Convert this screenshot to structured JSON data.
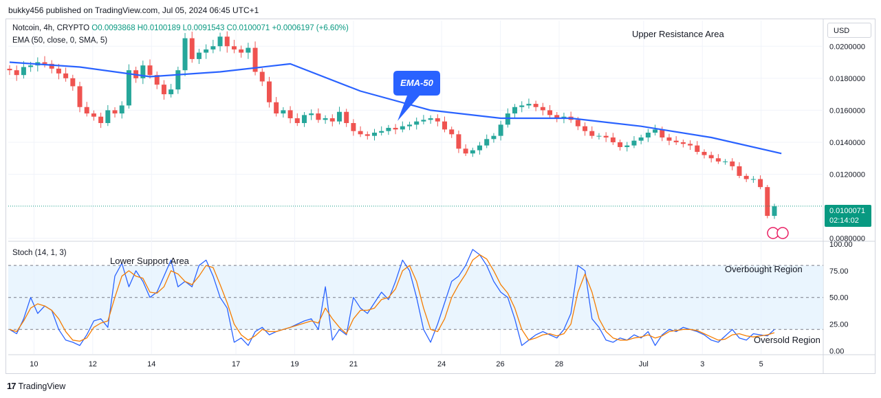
{
  "header": {
    "published": "bukky456 published on TradingView.com, Jul 05, 2024 06:45 UTC+1"
  },
  "legend": {
    "symbol": "Notcoin, 4h, CRYPTO",
    "open": "O0.0093868",
    "high": "H0.0100189",
    "low": "L0.0091543",
    "close": "C0.0100071",
    "change": "+0.0006197 (+6.60%)",
    "indicator": "EMA (50, close, 0, SMA, 5)"
  },
  "stoch_legend": "Stoch (14, 1, 3)",
  "currency_button": "USD",
  "current_price": {
    "value": "0.0100071",
    "countdown": "02:14:02"
  },
  "annotations": {
    "upper_resistance": "Upper Resistance Area",
    "lower_support": "Lower Support Area",
    "overbought": "Overbought Region",
    "oversold": "Oversold Region",
    "ema_callout": "EMA-50"
  },
  "footer": {
    "brand": "TradingView"
  },
  "colors": {
    "up": "#26a69a",
    "down": "#ef5350",
    "ema": "#2962ff",
    "stoch_k": "#2962ff",
    "stoch_d": "#f57c00",
    "band_fill": "#e3f2fd",
    "price_tag": "#089981"
  },
  "chart_data": [
    {
      "type": "candlestick",
      "title": "Notcoin, 4h, CRYPTO",
      "x_ticks": [
        "10",
        "12",
        "14",
        "17",
        "19",
        "21",
        "24",
        "26",
        "28",
        "Jul",
        "3",
        "5"
      ],
      "y_ticks": [
        "0.0200000",
        "0.0180000",
        "0.0160000",
        "0.0140000",
        "0.0120000",
        "0.0080000"
      ],
      "ylim": [
        0.0079,
        0.0216
      ],
      "last_price": 0.0100071,
      "close_series": [
        0.0185,
        0.0182,
        0.0187,
        0.0188,
        0.019,
        0.0189,
        0.0186,
        0.0183,
        0.018,
        0.0175,
        0.0162,
        0.0158,
        0.0156,
        0.0152,
        0.016,
        0.0158,
        0.0163,
        0.0185,
        0.018,
        0.0188,
        0.0182,
        0.0176,
        0.017,
        0.0173,
        0.0185,
        0.0205,
        0.0192,
        0.0196,
        0.0198,
        0.02,
        0.0206,
        0.02,
        0.0198,
        0.0196,
        0.0199,
        0.0184,
        0.0178,
        0.0165,
        0.0158,
        0.016,
        0.0155,
        0.0152,
        0.0157,
        0.0158,
        0.0154,
        0.0155,
        0.0153,
        0.0159,
        0.0152,
        0.0147,
        0.0145,
        0.0144,
        0.0146,
        0.0147,
        0.0149,
        0.0148,
        0.015,
        0.0151,
        0.0153,
        0.0154,
        0.0155,
        0.0153,
        0.0148,
        0.0145,
        0.0136,
        0.0133,
        0.0135,
        0.0138,
        0.0142,
        0.0144,
        0.0151,
        0.0158,
        0.0162,
        0.0163,
        0.0164,
        0.0162,
        0.016,
        0.0157,
        0.0155,
        0.0156,
        0.0154,
        0.015,
        0.0147,
        0.0144,
        0.0144,
        0.0143,
        0.014,
        0.0137,
        0.0138,
        0.0141,
        0.0143,
        0.0146,
        0.0148,
        0.0143,
        0.0141,
        0.014,
        0.0139,
        0.0138,
        0.0134,
        0.0132,
        0.013,
        0.0128,
        0.0128,
        0.0125,
        0.0119,
        0.0117,
        0.0117,
        0.0112,
        0.0094,
        0.01
      ],
      "ema50": {
        "name": "EMA-50",
        "x_index": [
          0,
          10,
          20,
          30,
          40,
          50,
          60,
          70,
          80,
          90,
          100,
          110
        ],
        "values": [
          0.019,
          0.0187,
          0.0181,
          0.0184,
          0.0189,
          0.0172,
          0.016,
          0.0155,
          0.0155,
          0.015,
          0.0143,
          0.0133
        ]
      }
    },
    {
      "type": "line",
      "title": "Stoch (14, 1, 3)",
      "y_ticks": [
        "100.00",
        "75.00",
        "50.00",
        "25.00",
        "0.00"
      ],
      "ylim": [
        -3,
        102
      ],
      "bands": [
        20,
        50,
        80
      ],
      "series": [
        {
          "name": "%K",
          "values": [
            20,
            16,
            30,
            50,
            35,
            42,
            38,
            20,
            10,
            8,
            5,
            15,
            28,
            30,
            22,
            70,
            82,
            60,
            75,
            65,
            50,
            55,
            70,
            85,
            60,
            65,
            60,
            80,
            85,
            70,
            50,
            40,
            8,
            12,
            5,
            18,
            22,
            15,
            18,
            20,
            22,
            25,
            28,
            30,
            20,
            60,
            10,
            20,
            15,
            50,
            40,
            35,
            45,
            55,
            48,
            65,
            85,
            75,
            50,
            20,
            8,
            25,
            45,
            65,
            70,
            80,
            95,
            90,
            80,
            65,
            55,
            50,
            30,
            5,
            10,
            15,
            18,
            15,
            12,
            20,
            35,
            80,
            75,
            30,
            22,
            10,
            8,
            12,
            10,
            15,
            12,
            18,
            5,
            15,
            20,
            18,
            22,
            20,
            18,
            15,
            10,
            8,
            14,
            20,
            12,
            10,
            16,
            15,
            14,
            20
          ]
        },
        {
          "name": "%D",
          "values": [
            20,
            18,
            28,
            40,
            44,
            42,
            38,
            30,
            18,
            10,
            9,
            12,
            22,
            26,
            28,
            50,
            70,
            75,
            70,
            68,
            55,
            54,
            60,
            75,
            72,
            65,
            62,
            70,
            80,
            78,
            62,
            45,
            25,
            15,
            10,
            14,
            20,
            18,
            18,
            20,
            22,
            24,
            26,
            28,
            26,
            40,
            30,
            22,
            16,
            30,
            38,
            38,
            40,
            48,
            50,
            58,
            75,
            80,
            65,
            40,
            20,
            18,
            30,
            50,
            62,
            72,
            85,
            90,
            86,
            75,
            62,
            54,
            40,
            20,
            10,
            12,
            15,
            16,
            14,
            16,
            25,
            55,
            72,
            55,
            30,
            18,
            12,
            10,
            10,
            12,
            13,
            15,
            12,
            14,
            18,
            19,
            20,
            20,
            19,
            16,
            13,
            10,
            11,
            15,
            16,
            14,
            13,
            14,
            15,
            17
          ]
        }
      ]
    }
  ]
}
